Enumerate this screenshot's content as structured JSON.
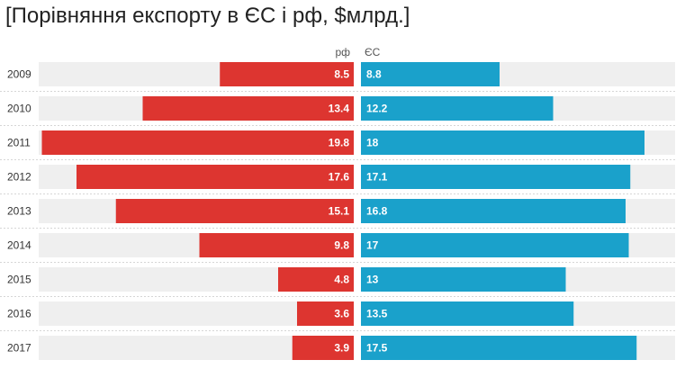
{
  "title": "[Порівняння експорту в ЄС і рф, $млрд.]",
  "colors": {
    "left_bar": "#dd3530",
    "right_bar": "#1aa1cb",
    "track": "#efefef",
    "separator": "#d6d6d6",
    "label_text": "#333333",
    "header_text": "#555555",
    "value_text": "#ffffff"
  },
  "chart_data": {
    "type": "bar",
    "title": "[Порівняння експорту в ЄС і рф, $млрд.]",
    "categories": [
      "2009",
      "2010",
      "2011",
      "2012",
      "2013",
      "2014",
      "2015",
      "2016",
      "2017"
    ],
    "series": [
      {
        "name": "рф",
        "values": [
          8.5,
          13.4,
          19.8,
          17.6,
          15.1,
          9.8,
          4.8,
          3.6,
          3.9
        ],
        "labels": [
          "8.5",
          "13.4",
          "19.8",
          "17.6",
          "15.1",
          "9.8",
          "4.8",
          "3.6",
          "3.9"
        ]
      },
      {
        "name": "ЄС",
        "values": [
          8.8,
          12.2,
          18,
          17.1,
          16.8,
          17,
          13,
          13.5,
          17.5
        ],
        "labels": [
          "8.8",
          "12.2",
          "18",
          "17.1",
          "16.8",
          "17",
          "13",
          "13.5",
          "17.5"
        ]
      }
    ],
    "xlim": [
      0,
      20
    ],
    "grid": false,
    "legend": "column headers above bars"
  }
}
